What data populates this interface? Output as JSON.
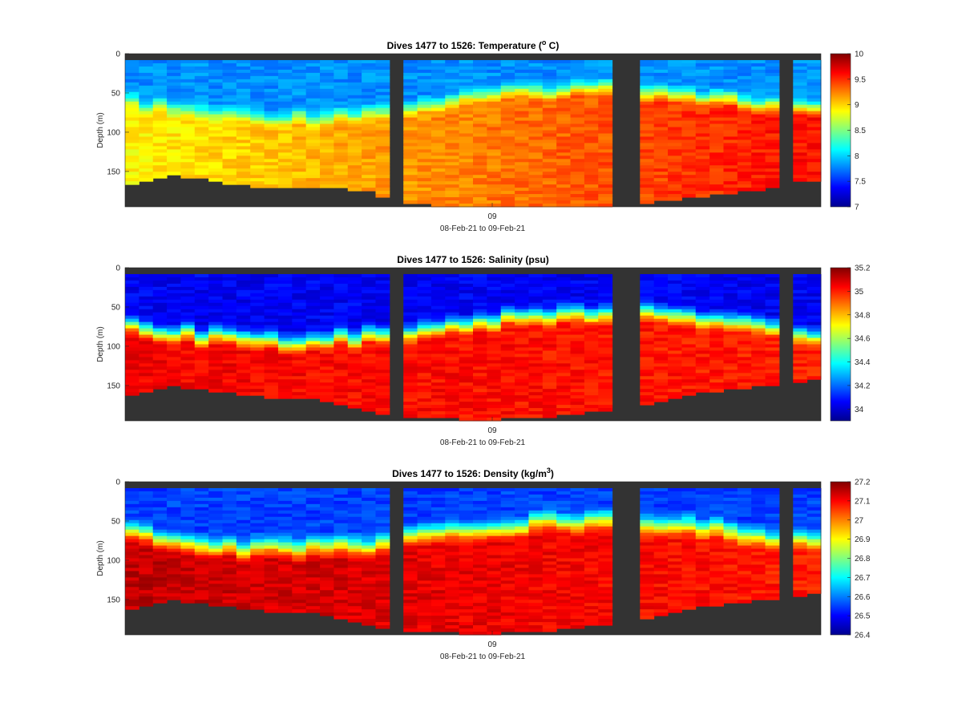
{
  "chart_data": [
    {
      "type": "heatmap",
      "title": "Dives 1477 to 1526: Temperature (",
      "title_sup": "o",
      "title_suffix": " C)",
      "ylabel": "Depth (m)",
      "xlabel": "08-Feb-21 to 09-Feb-21",
      "x_ticks": [
        "09"
      ],
      "y_ticks": [
        "0",
        "50",
        "100",
        "150"
      ],
      "ylim": [
        0,
        195
      ],
      "y_reversed": true,
      "colorbar": {
        "min": 7,
        "max": 10,
        "ticks": [
          "10",
          "9.5",
          "9",
          "8.5",
          "8",
          "7.5",
          "7"
        ],
        "colormap": "jet"
      },
      "profile": {
        "surface": 7.8,
        "mixed_layer_depth": 45,
        "deep": 8.9,
        "deep_late": 9.6,
        "gradient_width": 30
      },
      "dives": 50,
      "bottom_depth_by_dive": [
        166,
        160,
        156,
        154,
        156,
        156,
        160,
        164,
        166,
        168,
        168,
        168,
        168,
        168,
        170,
        170,
        172,
        174,
        180,
        186,
        190,
        190,
        192,
        194,
        196,
        196,
        196,
        196,
        196,
        196,
        196,
        196,
        196,
        196,
        196,
        194,
        194,
        190,
        186,
        184,
        182,
        180,
        178,
        176,
        174,
        172,
        170,
        166,
        162,
        160
      ],
      "missing_dives": [
        19,
        35,
        36,
        47
      ]
    },
    {
      "type": "heatmap",
      "title": "Dives 1477 to 1526: Salinity (psu)",
      "ylabel": "Depth (m)",
      "xlabel": "08-Feb-21 to 09-Feb-21",
      "x_ticks": [
        "09"
      ],
      "y_ticks": [
        "0",
        "50",
        "100",
        "150"
      ],
      "ylim": [
        0,
        195
      ],
      "y_reversed": true,
      "colorbar": {
        "min": 33.9,
        "max": 35.2,
        "ticks": [
          "35.2",
          "35",
          "34.8",
          "34.6",
          "34.4",
          "34.2",
          "34"
        ],
        "colormap": "jet"
      },
      "profile": {
        "surface": 34.05,
        "mixed_layer_depth": 55,
        "deep": 35.05,
        "deep_late": 35.0,
        "gradient_width": 35
      },
      "dives": 50,
      "bottom_depth_by_dive": [
        160,
        156,
        152,
        150,
        152,
        154,
        156,
        158,
        160,
        162,
        164,
        164,
        164,
        166,
        170,
        174,
        178,
        182,
        184,
        186,
        188,
        188,
        188,
        190,
        192,
        192,
        192,
        190,
        190,
        188,
        188,
        186,
        184,
        182,
        180,
        178,
        176,
        174,
        170,
        166,
        160,
        158,
        156,
        154,
        152,
        150,
        148,
        146,
        144,
        142
      ],
      "missing_dives": [
        19,
        35,
        36,
        47
      ]
    },
    {
      "type": "heatmap",
      "title": "Dives 1477 to 1526: Density (kg/m",
      "title_sup": "3",
      "title_suffix": ")",
      "ylabel": "Depth (m)",
      "xlabel": "08-Feb-21 to 09-Feb-21",
      "x_ticks": [
        "09"
      ],
      "y_ticks": [
        "0",
        "50",
        "100",
        "150"
      ],
      "ylim": [
        0,
        195
      ],
      "y_reversed": true,
      "colorbar": {
        "min": 26.4,
        "max": 27.2,
        "ticks": [
          "27.2",
          "27.1",
          "27",
          "26.9",
          "26.8",
          "26.7",
          "26.6",
          "26.5",
          "26.4"
        ],
        "colormap": "jet"
      },
      "profile": {
        "surface": 26.55,
        "mixed_layer_depth": 45,
        "deep": 27.15,
        "deep_late": 27.08,
        "gradient_width": 40
      },
      "dives": 50,
      "bottom_depth_by_dive": [
        160,
        156,
        152,
        150,
        152,
        154,
        156,
        158,
        160,
        162,
        164,
        164,
        164,
        166,
        170,
        174,
        178,
        182,
        184,
        186,
        188,
        188,
        188,
        190,
        192,
        192,
        192,
        190,
        190,
        188,
        188,
        186,
        184,
        182,
        180,
        178,
        176,
        174,
        170,
        166,
        160,
        158,
        156,
        154,
        152,
        150,
        148,
        146,
        144,
        142
      ],
      "missing_dives": [
        19,
        35,
        36,
        47
      ]
    }
  ]
}
